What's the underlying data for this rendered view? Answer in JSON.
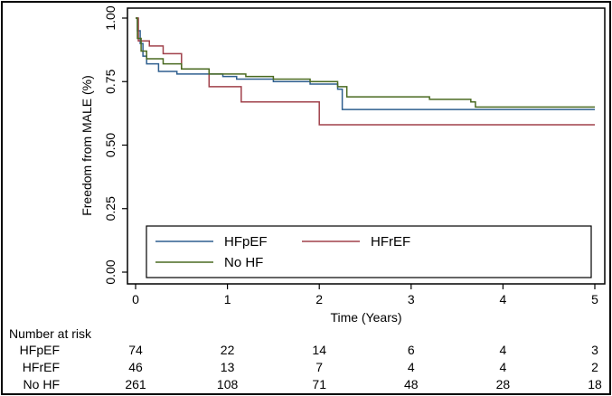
{
  "chart_data": {
    "type": "line",
    "xlabel": "Time (Years)",
    "ylabel": "Freedom from MALE (%)",
    "xlim": [
      0,
      5
    ],
    "ylim": [
      0,
      1
    ],
    "x_ticks": [
      "0",
      "1",
      "2",
      "3",
      "4",
      "5"
    ],
    "y_ticks": [
      "0.00",
      "0.25",
      "0.50",
      "0.75",
      "1.00"
    ],
    "grid": false,
    "legend_position": "bottom-inside",
    "series": [
      {
        "name": "HFpEF",
        "color": "#2f5f8f",
        "points": [
          [
            0,
            1.0
          ],
          [
            0.02,
            0.95
          ],
          [
            0.05,
            0.9
          ],
          [
            0.08,
            0.85
          ],
          [
            0.12,
            0.82
          ],
          [
            0.25,
            0.79
          ],
          [
            0.45,
            0.78
          ],
          [
            0.75,
            0.78
          ],
          [
            0.95,
            0.77
          ],
          [
            1.1,
            0.76
          ],
          [
            1.5,
            0.75
          ],
          [
            1.9,
            0.74
          ],
          [
            2.2,
            0.72
          ],
          [
            2.25,
            0.64
          ],
          [
            2.5,
            0.64
          ],
          [
            5.0,
            0.64
          ]
        ]
      },
      {
        "name": "HFrEF",
        "color": "#a0404a",
        "points": [
          [
            0,
            1.0
          ],
          [
            0.03,
            0.91
          ],
          [
            0.15,
            0.89
          ],
          [
            0.3,
            0.86
          ],
          [
            0.5,
            0.8
          ],
          [
            0.8,
            0.77
          ],
          [
            0.8,
            0.73
          ],
          [
            1.15,
            0.73
          ],
          [
            1.15,
            0.67
          ],
          [
            2.0,
            0.67
          ],
          [
            2.0,
            0.58
          ],
          [
            5.0,
            0.58
          ]
        ]
      },
      {
        "name": "No HF",
        "color": "#4a6a20",
        "points": [
          [
            0,
            1.0
          ],
          [
            0.02,
            0.92
          ],
          [
            0.06,
            0.87
          ],
          [
            0.12,
            0.84
          ],
          [
            0.3,
            0.82
          ],
          [
            0.5,
            0.8
          ],
          [
            0.8,
            0.78
          ],
          [
            1.2,
            0.77
          ],
          [
            1.5,
            0.76
          ],
          [
            1.9,
            0.75
          ],
          [
            2.2,
            0.73
          ],
          [
            2.3,
            0.69
          ],
          [
            2.7,
            0.69
          ],
          [
            3.2,
            0.68
          ],
          [
            3.65,
            0.67
          ],
          [
            3.7,
            0.65
          ],
          [
            5.0,
            0.65
          ]
        ]
      }
    ]
  },
  "legend": {
    "items": [
      {
        "label": "HFpEF",
        "color": "#2f5f8f"
      },
      {
        "label": "HFrEF",
        "color": "#a0404a"
      },
      {
        "label": "No HF",
        "color": "#4a6a20"
      }
    ]
  },
  "risk_table": {
    "title": "Number at risk",
    "rows": [
      {
        "label": "HFpEF",
        "values": [
          "74",
          "22",
          "14",
          "6",
          "4",
          "3"
        ]
      },
      {
        "label": "HFrEF",
        "values": [
          "46",
          "13",
          "7",
          "4",
          "4",
          "2"
        ]
      },
      {
        "label": "No HF",
        "values": [
          "261",
          "108",
          "71",
          "48",
          "28",
          "18"
        ]
      }
    ]
  }
}
